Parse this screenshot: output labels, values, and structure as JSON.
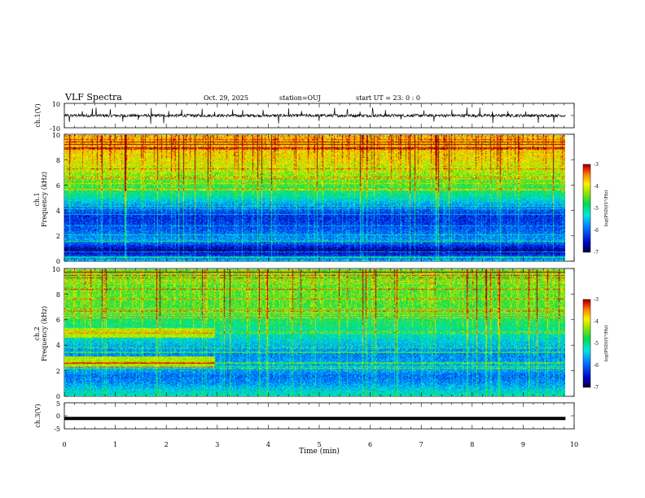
{
  "header": {
    "title": "VLF Spectra",
    "date": "Oct. 29, 2025",
    "station": "station=OUJ",
    "start": "start UT =  23: 0  : 0"
  },
  "chart_data": [
    {
      "type": "line",
      "panel": "ch1-waveform",
      "ylabel": "ch.1(V)",
      "ylim": [
        -10,
        10
      ],
      "ytick_labels": [
        "10",
        "-10"
      ],
      "baseline": 0,
      "noise_amplitude": 1.2,
      "spikes_x": [
        0.1,
        0.35,
        0.55,
        0.62,
        0.9,
        1.15,
        1.45,
        1.7,
        1.95,
        2.05,
        2.3,
        2.7,
        2.95,
        3.3,
        3.5,
        3.9,
        4.2,
        4.4,
        4.65,
        5.0,
        5.3,
        5.55,
        5.8,
        6.05,
        6.3,
        6.6,
        7.05,
        7.25,
        7.6,
        7.9,
        8.15,
        8.4,
        8.7,
        9.05,
        9.3,
        9.6
      ],
      "xlim": [
        0,
        10
      ]
    },
    {
      "type": "heatmap",
      "panel": "ch1-spectrogram",
      "ylabel": "ch.1\nFrequency (kHz)",
      "ylabel_lines": [
        "ch.1",
        "Frequency (kHz)"
      ],
      "ylim": [
        0,
        10
      ],
      "ytick_labels": [
        "0",
        "2",
        "4",
        "6",
        "8",
        "10"
      ],
      "xlim": [
        0,
        9.83
      ],
      "colorbar": {
        "label": "log(PSD)(V²/Hz)",
        "range": [
          -7,
          -3
        ],
        "tick_labels": [
          "-3",
          "-4",
          "-5",
          "-6",
          "-7"
        ]
      },
      "profile_levels": [
        {
          "f": 0.0,
          "v": -5.6
        },
        {
          "f": 0.4,
          "v": -6.3
        },
        {
          "f": 0.8,
          "v": -6.8
        },
        {
          "f": 1.2,
          "v": -6.4
        },
        {
          "f": 1.6,
          "v": -5.8
        },
        {
          "f": 2.0,
          "v": -5.9
        },
        {
          "f": 2.4,
          "v": -6.1
        },
        {
          "f": 3.0,
          "v": -6.3
        },
        {
          "f": 3.6,
          "v": -6.4
        },
        {
          "f": 4.2,
          "v": -6.0
        },
        {
          "f": 5.0,
          "v": -5.3
        },
        {
          "f": 5.8,
          "v": -4.8
        },
        {
          "f": 6.6,
          "v": -4.5
        },
        {
          "f": 7.4,
          "v": -4.2
        },
        {
          "f": 8.2,
          "v": -4.0
        },
        {
          "f": 9.0,
          "v": -3.9
        },
        {
          "f": 10.0,
          "v": -3.8
        }
      ]
    },
    {
      "type": "heatmap",
      "panel": "ch2-spectrogram",
      "ylabel": "ch.2\nFrequency (kHz)",
      "ylabel_lines": [
        "ch.2",
        "Frequency (kHz)"
      ],
      "ylim": [
        0,
        10
      ],
      "ytick_labels": [
        "0",
        "2",
        "4",
        "6",
        "8",
        "10"
      ],
      "xlim": [
        0,
        9.83
      ],
      "colorbar": {
        "label": "log(PSD)(V²/Hz)",
        "range": [
          -7,
          -3
        ],
        "tick_labels": [
          "-3",
          "-4",
          "-5",
          "-6",
          "-7"
        ]
      },
      "profile_levels": [
        {
          "f": 0.0,
          "v": -5.2
        },
        {
          "f": 0.4,
          "v": -5.4
        },
        {
          "f": 1.0,
          "v": -5.8
        },
        {
          "f": 1.6,
          "v": -6.0
        },
        {
          "f": 2.2,
          "v": -5.6
        },
        {
          "f": 2.8,
          "v": -5.8
        },
        {
          "f": 3.4,
          "v": -5.9
        },
        {
          "f": 4.0,
          "v": -5.6
        },
        {
          "f": 5.0,
          "v": -5.2
        },
        {
          "f": 6.0,
          "v": -4.9
        },
        {
          "f": 7.0,
          "v": -4.7
        },
        {
          "f": 8.0,
          "v": -4.6
        },
        {
          "f": 9.0,
          "v": -4.6
        },
        {
          "f": 10.0,
          "v": -4.5
        }
      ],
      "early_band": {
        "x_end_min": 2.95,
        "f_ranges_khz": [
          [
            2.3,
            3.1
          ],
          [
            4.6,
            5.4
          ]
        ],
        "v": -4.2
      }
    },
    {
      "type": "line",
      "panel": "ch3-waveform",
      "ylabel": "ch.3(V)",
      "ylim": [
        -5,
        5
      ],
      "ytick_labels": [
        "5",
        "0",
        "-5"
      ],
      "level": -1,
      "xlim": [
        0,
        10
      ],
      "xlabel": "Time (min)",
      "xtick_labels": [
        "0",
        "1",
        "2",
        "3",
        "4",
        "5",
        "6",
        "7",
        "8",
        "9",
        "10"
      ]
    }
  ]
}
